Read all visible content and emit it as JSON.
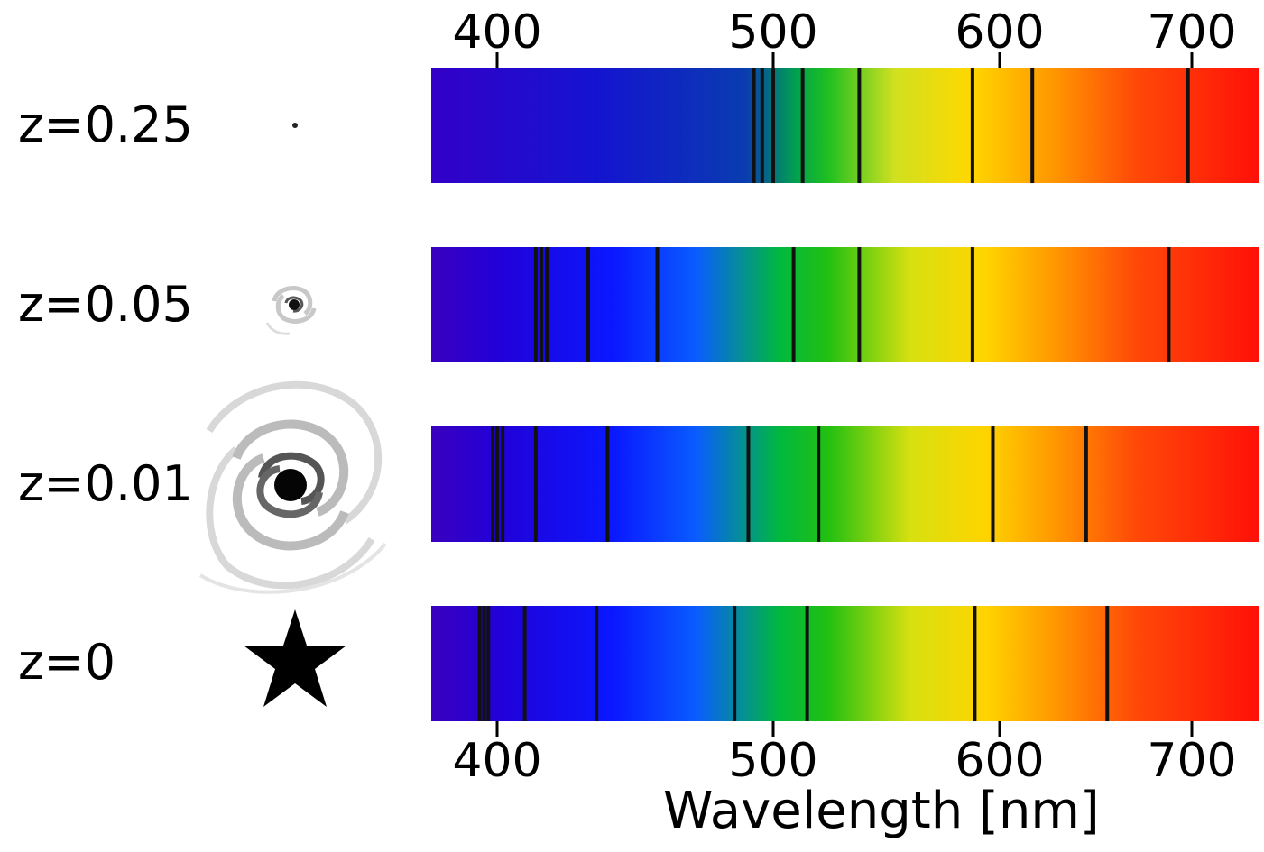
{
  "axis": {
    "ticks": [
      "400",
      "500",
      "600",
      "700"
    ],
    "title": "Wavelength [nm]"
  },
  "rows": [
    {
      "label": "z=0.25",
      "object": "distant-galaxy-dot-icon",
      "lines": [
        493,
        496,
        500,
        513,
        538,
        588,
        617,
        698
      ]
    },
    {
      "label": "z=0.05",
      "object": "small-spiral-galaxy-icon",
      "lines": [
        414,
        416,
        418,
        433,
        458,
        509,
        538,
        588,
        688
      ]
    },
    {
      "label": "z=0.01",
      "object": "spiral-galaxy-icon",
      "lines": [
        398,
        400,
        402,
        414,
        440,
        491,
        520,
        597,
        645
      ]
    },
    {
      "label": "z=0",
      "object": "star-icon",
      "lines": [
        392,
        394,
        396,
        410,
        436,
        486,
        515,
        589,
        656
      ]
    }
  ],
  "colors": {
    "line": "#111111",
    "background": "#ffffff"
  }
}
